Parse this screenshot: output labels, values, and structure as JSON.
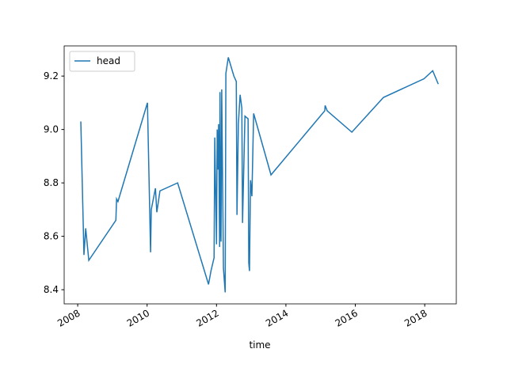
{
  "chart_data": {
    "type": "line",
    "xlabel": "time",
    "x": [
      2008.09,
      2008.18,
      2008.23,
      2008.32,
      2009.1,
      2009.12,
      2009.16,
      2010.01,
      2010.1,
      2010.12,
      2010.24,
      2010.28,
      2010.37,
      2010.88,
      2011.77,
      2011.84,
      2011.93,
      2011.95,
      2012.0,
      2012.02,
      2012.04,
      2012.06,
      2012.09,
      2012.1,
      2012.12,
      2012.13,
      2012.15,
      2012.2,
      2012.25,
      2012.27,
      2012.34,
      2012.5,
      2012.57,
      2012.59,
      2012.63,
      2012.68,
      2012.73,
      2012.75,
      2012.82,
      2012.91,
      2012.93,
      2012.95,
      2012.98,
      2013.02,
      2013.07,
      2013.57,
      2015.12,
      2015.13,
      2015.19,
      2015.9,
      2016.81,
      2017.98,
      2018.23,
      2018.39
    ],
    "series": [
      {
        "name": "head",
        "color": "#1f77b4",
        "values": [
          9.03,
          8.53,
          8.63,
          8.51,
          8.66,
          8.74,
          8.73,
          9.1,
          8.54,
          8.7,
          8.78,
          8.69,
          8.77,
          8.8,
          8.42,
          8.47,
          8.52,
          8.97,
          8.57,
          9.0,
          8.85,
          9.02,
          8.56,
          9.14,
          8.62,
          8.58,
          9.15,
          8.48,
          8.39,
          9.21,
          9.27,
          9.2,
          9.18,
          8.68,
          9.02,
          9.13,
          9.08,
          8.65,
          9.05,
          9.04,
          8.5,
          8.47,
          8.81,
          8.75,
          9.06,
          8.83,
          9.07,
          9.09,
          9.07,
          8.99,
          9.12,
          9.19,
          9.22,
          9.17
        ]
      }
    ],
    "xlim": [
      2007.61,
      2018.91
    ],
    "xticks": [
      2008,
      2010,
      2012,
      2014,
      2016,
      2018
    ],
    "ylim": [
      8.347,
      9.313
    ],
    "yticks": [
      8.4,
      8.6,
      8.8,
      9.0,
      9.2
    ],
    "legend": "upper left"
  }
}
